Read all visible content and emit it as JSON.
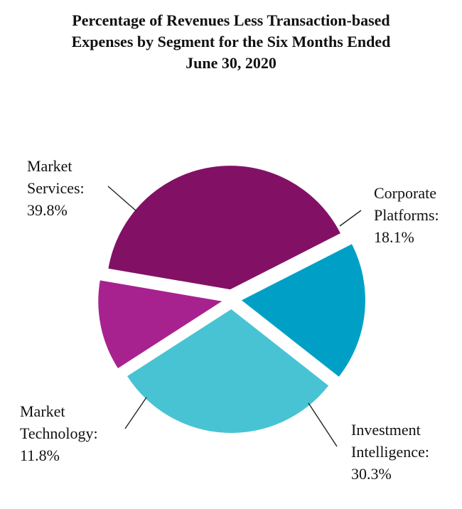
{
  "chart_data": {
    "type": "pie",
    "title_lines": [
      "Percentage of Revenues Less Transaction-based",
      "Expenses by Segment for the Six Months Ended",
      "June 30, 2020"
    ],
    "categories": [
      "Corporate Platforms",
      "Investment Intelligence",
      "Market Technology",
      "Market Services"
    ],
    "values": [
      18.1,
      30.3,
      11.8,
      39.8
    ],
    "unit": "%",
    "colors": [
      "#00A0C6",
      "#48C3D3",
      "#A7228E",
      "#821166"
    ],
    "labels": [
      {
        "lines": [
          "Corporate",
          "Platforms:",
          "18.1%"
        ]
      },
      {
        "lines": [
          "Investment",
          "Intelligence:",
          "30.3%"
        ]
      },
      {
        "lines": [
          "Market",
          "Technology:",
          "11.8%"
        ]
      },
      {
        "lines": [
          "Market",
          "Services:",
          "39.8%"
        ]
      }
    ]
  }
}
